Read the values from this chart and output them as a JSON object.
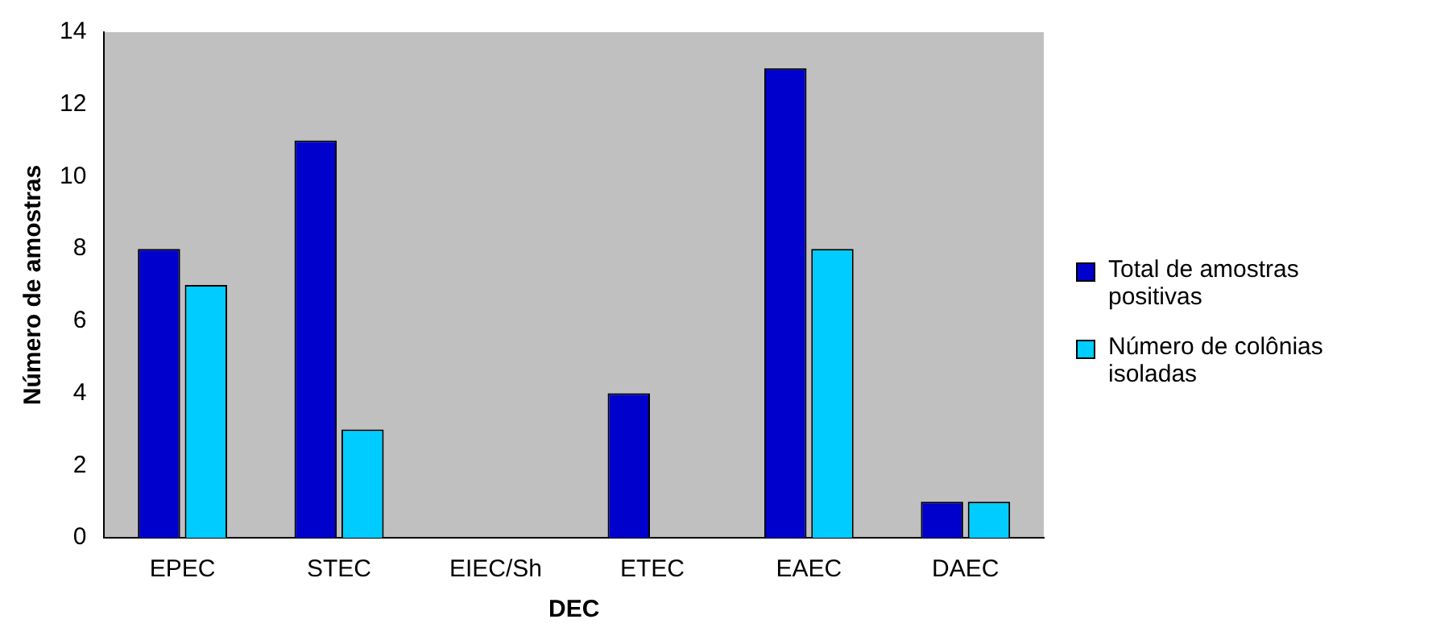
{
  "chart_data": {
    "type": "bar",
    "xlabel": "DEC",
    "ylabel": "Número de amostras",
    "categories": [
      "EPEC",
      "STEC",
      "EIEC/Sh",
      "ETEC",
      "EAEC",
      "DAEC"
    ],
    "series": [
      {
        "name": "Total de amostras positivas",
        "color": "#0000cc",
        "values": [
          8,
          11,
          0,
          4,
          13,
          1
        ]
      },
      {
        "name": "Número de colônias isoladas",
        "color": "#00ccff",
        "values": [
          7,
          3,
          0,
          0,
          8,
          1
        ]
      }
    ],
    "ylim": [
      0,
      14
    ],
    "yticks": [
      0,
      2,
      4,
      6,
      8,
      10,
      12,
      14
    ],
    "grid": false,
    "legend": "right"
  }
}
